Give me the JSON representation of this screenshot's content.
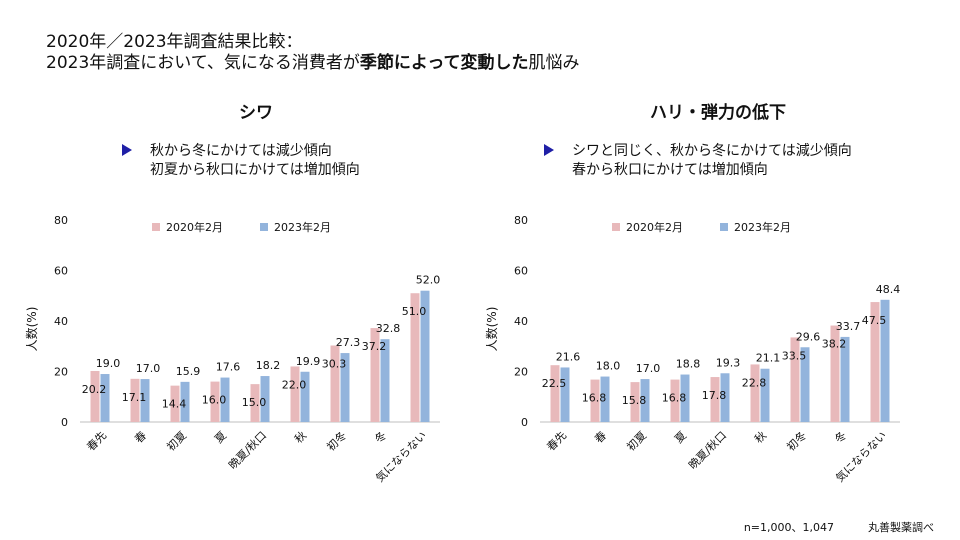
{
  "title": {
    "line1": "2020年／2023年調査結果比較：",
    "line2_pre": "2023年調査において、気になる消費者が",
    "line2_bold": "季節によって変動した",
    "line2_post": "肌悩み"
  },
  "colors": {
    "series2020": "#e8b9bb",
    "series2023": "#93b4dc",
    "note_marker": "#1f1fa6"
  },
  "chart_data": [
    {
      "type": "bar",
      "title": "シワ",
      "note": [
        "秋から冬にかけては減少傾向",
        "初夏から秋口にかけては増加傾向"
      ],
      "ylabel": "人数(%)",
      "ylim": [
        0,
        80
      ],
      "yticks": [
        "0",
        "20",
        "40",
        "60",
        "80"
      ],
      "categories": [
        "春先",
        "春",
        "初夏",
        "夏",
        "晩夏/秋口",
        "秋",
        "初冬",
        "冬",
        "気にならない"
      ],
      "series": [
        {
          "name": "2020年2月",
          "values": [
            20.2,
            17.1,
            14.4,
            16.0,
            15.0,
            22.0,
            30.3,
            37.2,
            51.0
          ]
        },
        {
          "name": "2023年2月",
          "values": [
            19.0,
            17.0,
            15.9,
            17.6,
            18.2,
            19.9,
            27.3,
            32.8,
            52.0
          ]
        }
      ],
      "legend": "top"
    },
    {
      "type": "bar",
      "title": "ハリ・弾力の低下",
      "note": [
        "シワと同じく、秋から冬にかけては減少傾向",
        "春から秋口にかけては増加傾向"
      ],
      "ylabel": "人数(%)",
      "ylim": [
        0,
        80
      ],
      "yticks": [
        "0",
        "20",
        "40",
        "60",
        "80"
      ],
      "categories": [
        "春先",
        "春",
        "初夏",
        "夏",
        "晩夏/秋口",
        "秋",
        "初冬",
        "冬",
        "気にならない"
      ],
      "series": [
        {
          "name": "2020年2月",
          "values": [
            22.5,
            16.8,
            15.8,
            16.8,
            17.8,
            22.8,
            33.5,
            38.2,
            47.5
          ]
        },
        {
          "name": "2023年2月",
          "values": [
            21.6,
            18.0,
            17.0,
            18.8,
            19.3,
            21.1,
            29.6,
            33.7,
            48.4
          ]
        }
      ],
      "legend": "top"
    }
  ],
  "footer": {
    "sample": "n=1,000、1,047",
    "source": "丸善製薬調べ"
  }
}
